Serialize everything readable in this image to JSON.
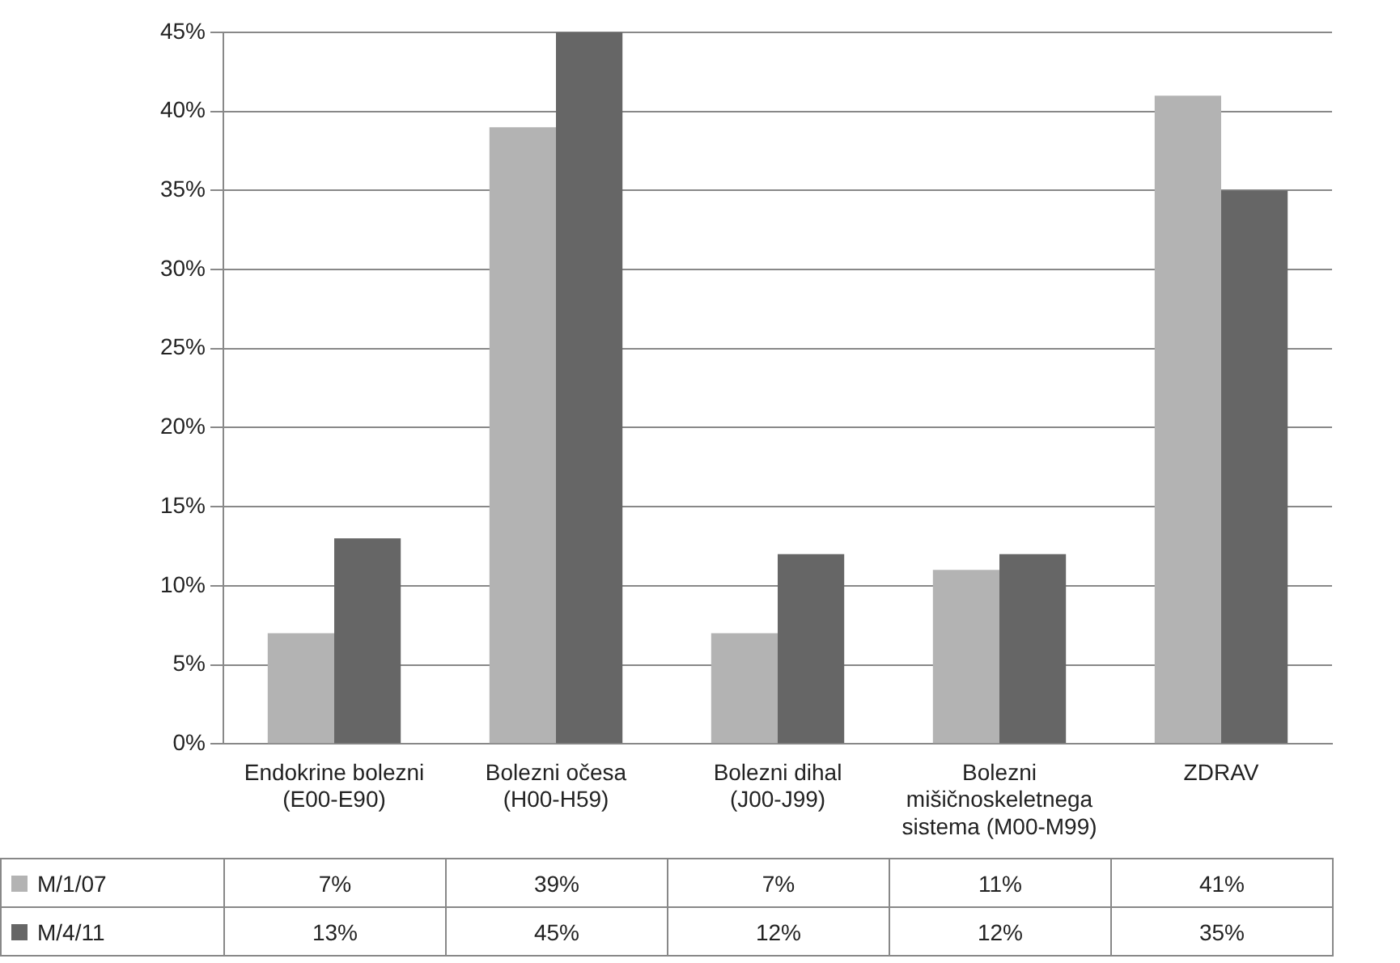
{
  "chart_data": {
    "type": "bar",
    "categories": [
      "Endokrine bolezni (E00-E90)",
      "Bolezni očesa (H00-H59)",
      "Bolezni dihal (J00-J99)",
      "Bolezni mišičnoskeletnega sistema (M00-M99)",
      "ZDRAV"
    ],
    "series": [
      {
        "name": "M/1/07",
        "color": "#b3b3b3",
        "values": [
          7,
          39,
          7,
          11,
          41
        ],
        "value_labels": [
          "7%",
          "39%",
          "7%",
          "11%",
          "41%"
        ]
      },
      {
        "name": "M/4/11",
        "color": "#666666",
        "values": [
          13,
          45,
          12,
          12,
          35
        ],
        "value_labels": [
          "13%",
          "45%",
          "12%",
          "12%",
          "35%"
        ]
      }
    ],
    "ylim": [
      0,
      45
    ],
    "yticks": [
      {
        "value": 0,
        "label": "0%"
      },
      {
        "value": 5,
        "label": "5%"
      },
      {
        "value": 10,
        "label": "10%"
      },
      {
        "value": 15,
        "label": "15%"
      },
      {
        "value": 20,
        "label": "20%"
      },
      {
        "value": 25,
        "label": "25%"
      },
      {
        "value": 30,
        "label": "30%"
      },
      {
        "value": 35,
        "label": "35%"
      },
      {
        "value": 40,
        "label": "40%"
      },
      {
        "value": 45,
        "label": "45%"
      }
    ],
    "grid": "y",
    "legend": "bottom left"
  }
}
